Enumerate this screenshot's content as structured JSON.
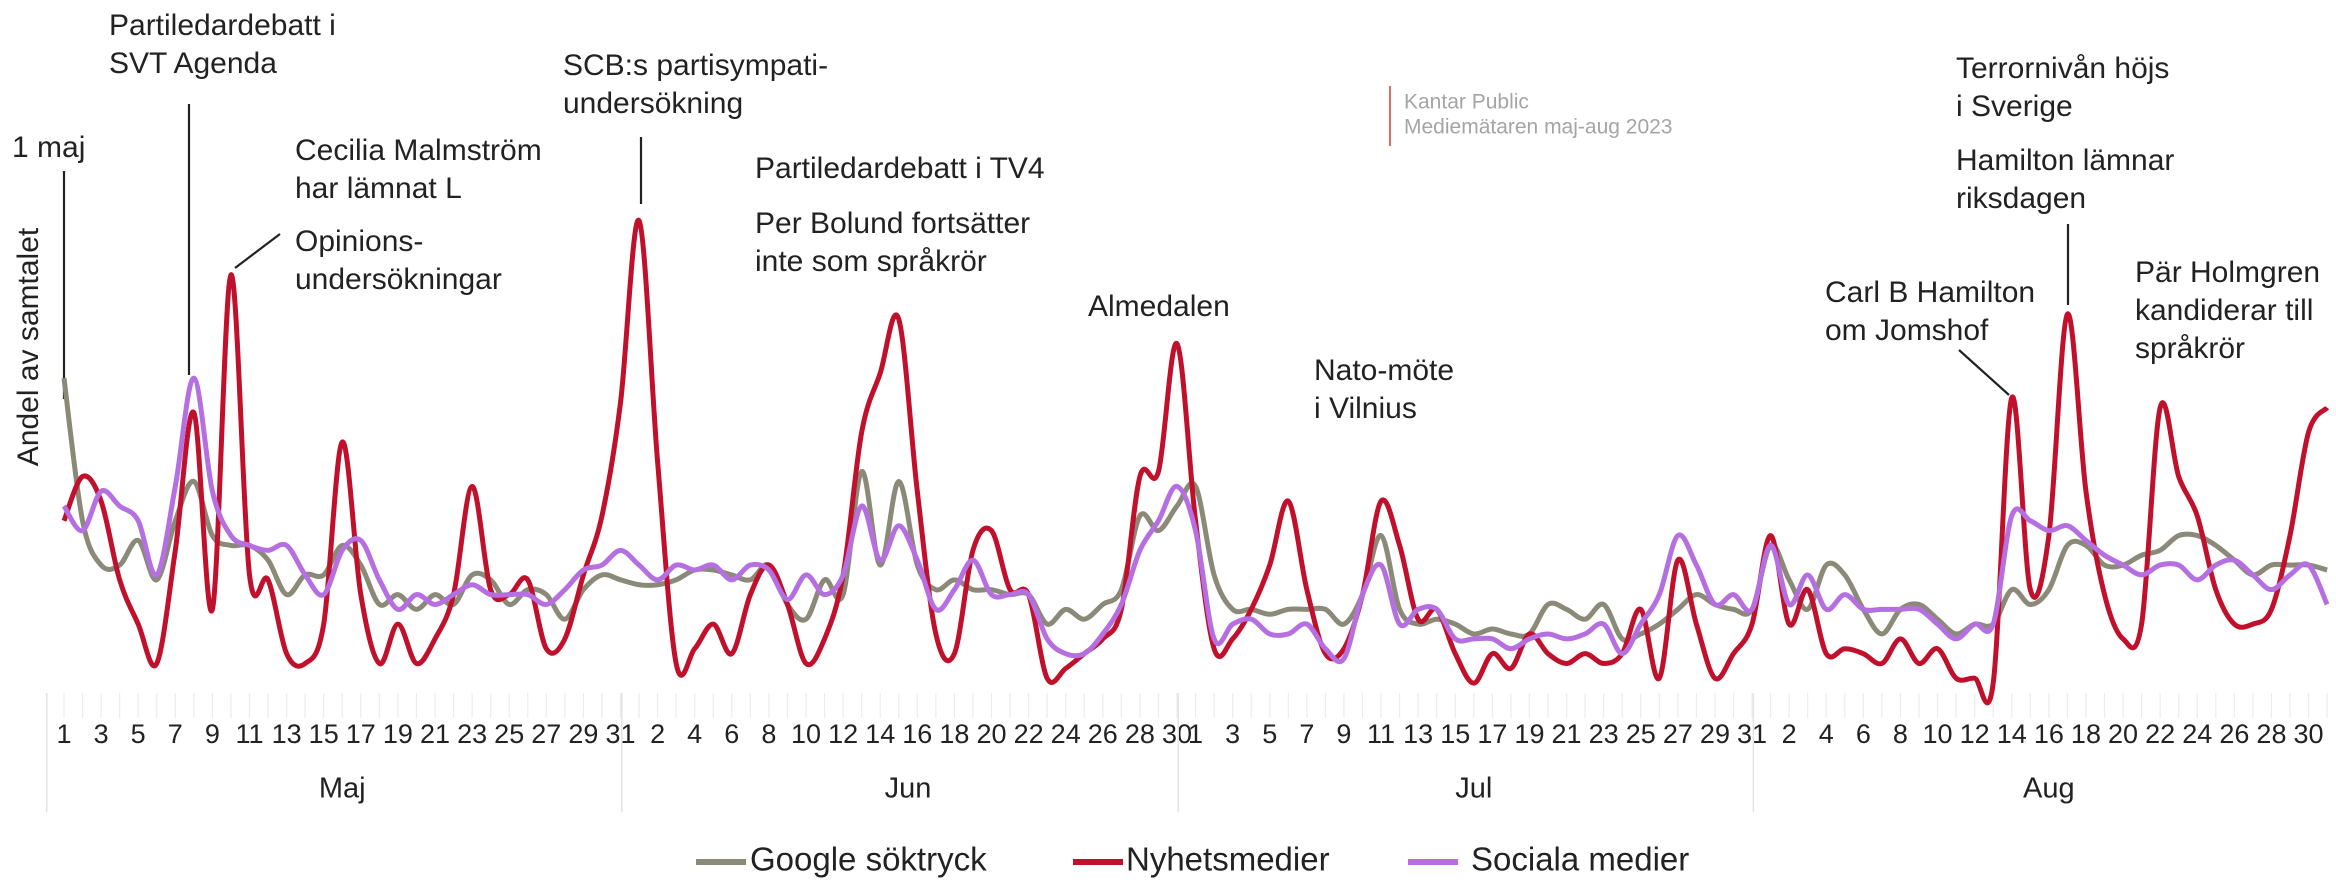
{
  "chart_data": {
    "type": "line",
    "y_label": "Andel av samtalet",
    "note": [
      "Kantar Public",
      "Mediemätaren maj-aug 2023"
    ],
    "months": [
      {
        "name": "Maj",
        "days": [
          1,
          null,
          3,
          null,
          5,
          null,
          7,
          null,
          9,
          null,
          11,
          null,
          13,
          null,
          15,
          null,
          17,
          null,
          19,
          null,
          21,
          null,
          23,
          null,
          25,
          null,
          27,
          null,
          29,
          null,
          31
        ]
      },
      {
        "name": "Jun",
        "days": [
          null,
          2,
          null,
          4,
          null,
          6,
          null,
          8,
          null,
          10,
          null,
          12,
          null,
          14,
          null,
          16,
          null,
          18,
          null,
          20,
          null,
          22,
          null,
          24,
          null,
          26,
          null,
          28,
          null,
          30
        ]
      },
      {
        "name": "Jul",
        "days": [
          1,
          null,
          3,
          null,
          5,
          null,
          7,
          null,
          9,
          null,
          11,
          null,
          13,
          null,
          15,
          null,
          17,
          null,
          19,
          null,
          21,
          null,
          23,
          null,
          25,
          null,
          27,
          null,
          29,
          null,
          31
        ]
      },
      {
        "name": "Aug",
        "days": [
          null,
          2,
          null,
          4,
          null,
          6,
          null,
          8,
          null,
          10,
          null,
          12,
          null,
          14,
          null,
          16,
          null,
          18,
          null,
          20,
          null,
          22,
          null,
          24,
          null,
          26,
          null,
          28,
          null,
          30,
          null
        ]
      }
    ],
    "ylim": [
      0,
      100
    ],
    "series": [
      {
        "name": "Google söktryck",
        "color": "#8b8a78",
        "values": [
          64,
          35,
          26,
          26,
          31,
          23,
          35,
          43,
          32,
          30,
          30,
          27,
          20,
          24,
          24,
          30,
          26,
          18,
          20,
          17,
          20,
          18,
          24,
          23,
          18,
          21,
          20,
          15,
          21,
          24,
          23,
          22,
          22,
          23,
          25,
          25,
          24,
          23,
          26,
          18,
          15,
          23,
          20,
          45,
          26,
          43,
          26,
          21,
          23,
          21,
          21,
          20,
          20,
          14,
          17,
          15,
          18,
          21,
          36,
          33,
          38,
          42,
          24,
          17,
          17,
          16,
          17,
          17,
          17,
          14,
          20,
          32,
          17,
          14,
          15,
          14,
          12,
          13,
          12,
          12,
          18,
          17,
          15,
          18,
          11,
          12,
          14,
          17,
          20,
          18,
          17,
          17,
          30,
          23,
          17,
          26,
          24,
          17,
          12,
          17,
          18,
          15,
          12,
          14,
          14,
          21,
          18,
          21,
          30,
          30,
          26,
          26,
          28,
          29,
          32,
          32,
          30,
          27,
          24,
          26,
          26,
          26,
          25
        ]
      },
      {
        "name": "Nyhetsmedier",
        "color": "#c0102b",
        "values": [
          35,
          44,
          39,
          23,
          14,
          6,
          29,
          57,
          17,
          85,
          24,
          23,
          8,
          6,
          14,
          51,
          20,
          6,
          14,
          6,
          11,
          20,
          42,
          21,
          20,
          23,
          9,
          11,
          24,
          36,
          59,
          96,
          47,
          6,
          9,
          14,
          8,
          20,
          26,
          18,
          6,
          11,
          24,
          53,
          65,
          76,
          41,
          12,
          8,
          29,
          33,
          21,
          20,
          3,
          5,
          8,
          11,
          17,
          44,
          45,
          71,
          35,
          9,
          11,
          17,
          26,
          39,
          21,
          8,
          9,
          20,
          39,
          30,
          15,
          17,
          8,
          2,
          8,
          5,
          12,
          8,
          6,
          8,
          6,
          8,
          17,
          3,
          27,
          14,
          3,
          8,
          14,
          32,
          14,
          21,
          8,
          9,
          8,
          6,
          11,
          6,
          9,
          3,
          3,
          2,
          60,
          21,
          32,
          77,
          41,
          20,
          11,
          14,
          58,
          44,
          36,
          21,
          14,
          14,
          17,
          32,
          53,
          58
        ]
      },
      {
        "name": "Sociala medier",
        "color": "#b56fe0",
        "values": [
          38,
          33,
          41,
          38,
          35,
          24,
          42,
          64,
          41,
          32,
          30,
          29,
          30,
          24,
          20,
          29,
          31,
          23,
          17,
          20,
          18,
          20,
          22,
          20,
          20,
          20,
          18,
          21,
          25,
          26,
          29,
          26,
          23,
          26,
          25,
          26,
          23,
          26,
          25,
          19,
          24,
          20,
          24,
          38,
          27,
          34,
          27,
          17,
          21,
          27,
          20,
          20,
          20,
          11,
          8,
          8,
          12,
          18,
          29,
          35,
          42,
          33,
          11,
          14,
          15,
          12,
          12,
          14,
          9,
          7,
          20,
          26,
          14,
          17,
          17,
          11,
          11,
          11,
          9,
          11,
          12,
          11,
          12,
          14,
          8,
          14,
          20,
          32,
          26,
          18,
          20,
          17,
          30,
          18,
          24,
          17,
          20,
          17,
          17,
          17,
          17,
          14,
          11,
          14,
          14,
          36,
          35,
          33,
          34,
          31,
          28,
          26,
          24,
          26,
          26,
          23,
          26,
          27,
          24,
          21,
          24,
          26,
          18
        ]
      }
    ],
    "annotations": [
      {
        "lines": [
          "1 maj"
        ]
      },
      {
        "lines": [
          "Partiledardebatt i",
          "SVT Agenda"
        ]
      },
      {
        "lines": [
          "Cecilia Malmström",
          "har lämnat L"
        ]
      },
      {
        "lines": [
          "Opinions-",
          "undersökningar"
        ]
      },
      {
        "lines": [
          "SCB:s partisympati-",
          "undersökning"
        ]
      },
      {
        "lines": [
          "Partiledardebatt i TV4"
        ]
      },
      {
        "lines": [
          "Per Bolund fortsätter",
          "inte som språkrör"
        ]
      },
      {
        "lines": [
          "Almedalen"
        ]
      },
      {
        "lines": [
          "Nato-möte",
          "i Vilnius"
        ]
      },
      {
        "lines": [
          "Terrornivån höjs",
          "i Sverige"
        ]
      },
      {
        "lines": [
          "Hamilton lämnar",
          "riksdagen"
        ]
      },
      {
        "lines": [
          "Carl B Hamilton",
          "om Jomshof"
        ]
      },
      {
        "lines": [
          "Pär Holmgren",
          "kandiderar till",
          "språkrör"
        ]
      }
    ]
  }
}
